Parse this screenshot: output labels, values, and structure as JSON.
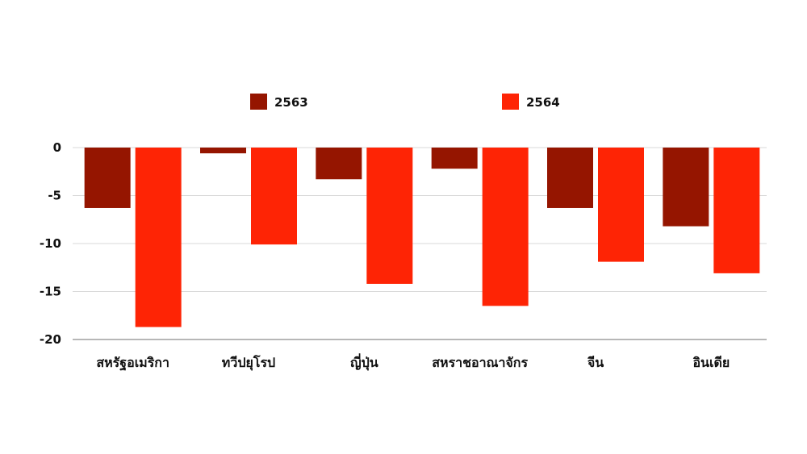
{
  "chart_data": {
    "type": "bar",
    "categories": [
      "สหรัฐอเมริกา",
      "ทวีปยุโรป",
      "ญี่ปุ่น",
      "สหราชอาณาจักร",
      "จีน",
      "อินเดีย"
    ],
    "series": [
      {
        "name": "2563",
        "color": "#951500",
        "values": [
          -6.3,
          -0.6,
          -3.3,
          -2.2,
          -6.3,
          -8.2
        ]
      },
      {
        "name": "2564",
        "color": "#fe2405",
        "values": [
          -18.7,
          -10.1,
          -14.2,
          -16.5,
          -11.9,
          -13.1
        ]
      }
    ],
    "yticks": [
      0,
      -5,
      -10,
      -15,
      -20
    ],
    "ylim": [
      -20,
      0
    ],
    "grid": true,
    "legend_position": "top"
  }
}
